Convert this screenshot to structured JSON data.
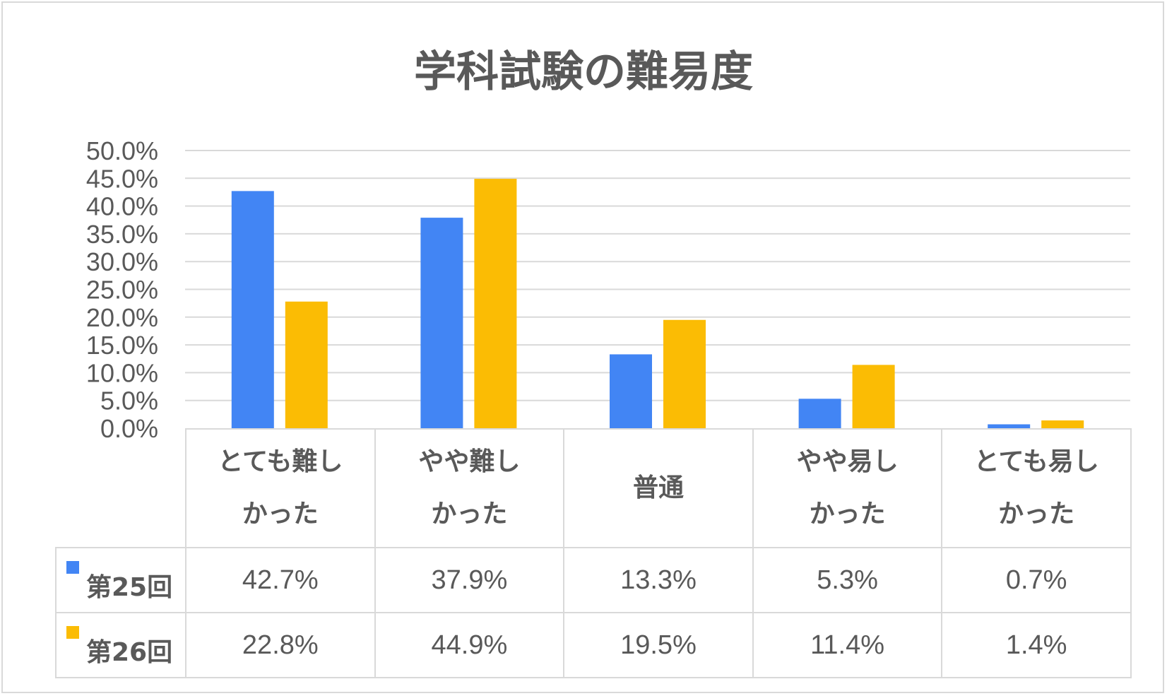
{
  "chart_data": {
    "type": "bar",
    "title": "学科試験の難易度",
    "categories": [
      [
        "とても難し",
        "かった"
      ],
      [
        "やや難し",
        "かった"
      ],
      [
        "普通"
      ],
      [
        "やや易し",
        "かった"
      ],
      [
        "とても易し",
        "かった"
      ]
    ],
    "series": [
      {
        "name": "第25回",
        "color": "#4285f4",
        "values": [
          42.7,
          37.9,
          13.3,
          5.3,
          0.7
        ],
        "labels": [
          "42.7%",
          "37.9%",
          "13.3%",
          "5.3%",
          "0.7%"
        ]
      },
      {
        "name": "第26回",
        "color": "#fbbc04",
        "values": [
          22.8,
          44.9,
          19.5,
          11.4,
          1.4
        ],
        "labels": [
          "22.8%",
          "44.9%",
          "19.5%",
          "11.4%",
          "1.4%"
        ]
      }
    ],
    "yticks": [
      "0.0%",
      "5.0%",
      "10.0%",
      "15.0%",
      "20.0%",
      "25.0%",
      "30.0%",
      "35.0%",
      "40.0%",
      "45.0%",
      "50.0%"
    ],
    "ylim": [
      0,
      50
    ],
    "grid": true,
    "legend": "data-table"
  }
}
